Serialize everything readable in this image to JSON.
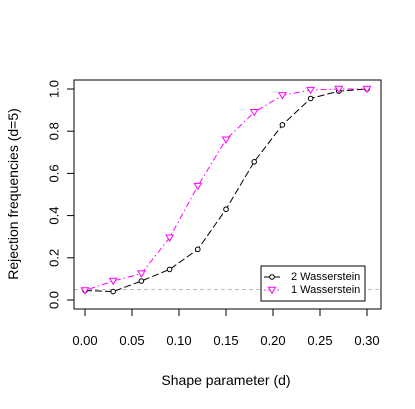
{
  "chart_data": {
    "type": "line",
    "title": "",
    "xlabel": "Shape parameter (d)",
    "ylabel": "Rejection frequencies (d=5)",
    "xlim": [
      0,
      0.3
    ],
    "ylim": [
      0,
      1
    ],
    "x_ticks": [
      0.0,
      0.05,
      0.1,
      0.15,
      0.2,
      0.25,
      0.3
    ],
    "x_tick_labels": [
      "0.00",
      "0.05",
      "0.10",
      "0.15",
      "0.20",
      "0.25",
      "0.30"
    ],
    "y_ticks": [
      0.0,
      0.2,
      0.4,
      0.6,
      0.8,
      1.0
    ],
    "y_tick_labels": [
      "0.0",
      "0.2",
      "0.4",
      "0.6",
      "0.8",
      "1.0"
    ],
    "x": [
      0.0,
      0.03,
      0.06,
      0.09,
      0.12,
      0.15,
      0.18,
      0.21,
      0.24,
      0.27,
      0.3
    ],
    "series": [
      {
        "name": "2  Wasserstein",
        "values": [
          0.045,
          0.04,
          0.09,
          0.145,
          0.24,
          0.43,
          0.655,
          0.83,
          0.955,
          0.99,
          1.0
        ],
        "color": "#000000",
        "marker": "circle",
        "line_style": "longdash"
      },
      {
        "name": "1  Wasserstein",
        "values": [
          0.045,
          0.09,
          0.125,
          0.295,
          0.54,
          0.76,
          0.89,
          0.97,
          0.995,
          1.0,
          1.0
        ],
        "color": "#ff00ff",
        "marker": "triangle-down",
        "line_style": "dotdash"
      }
    ],
    "reference_line": {
      "y": 0.05,
      "color": "#bebebe",
      "style": "dashed"
    },
    "legend": {
      "position": "bottom-right"
    },
    "grid": false
  }
}
